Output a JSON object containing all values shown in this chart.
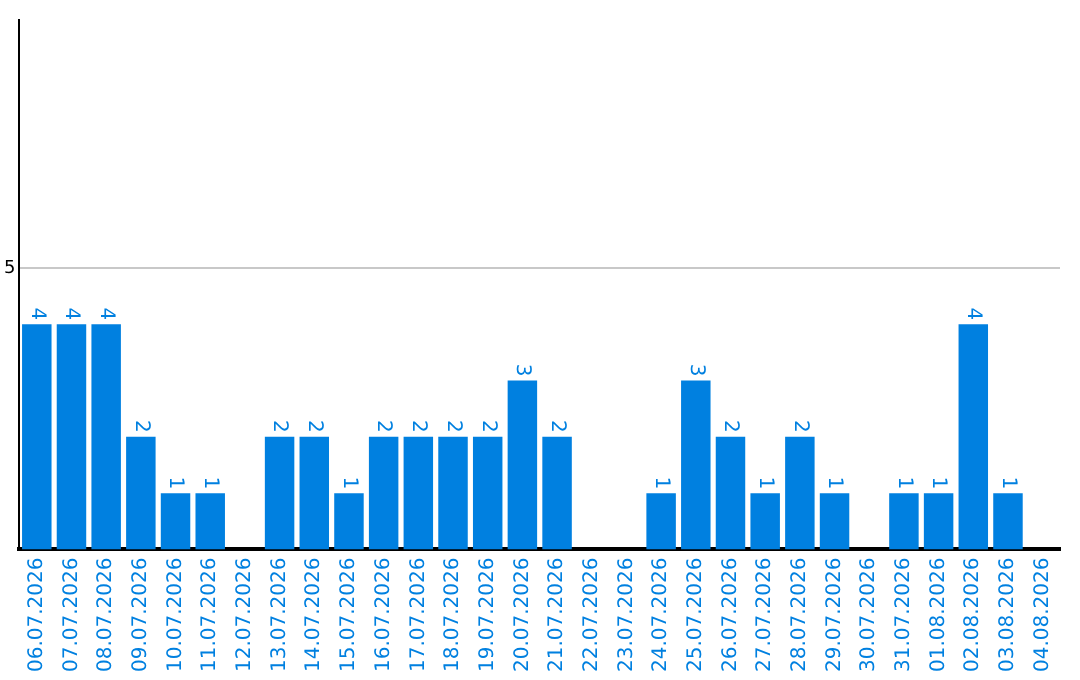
{
  "chart_data": {
    "type": "bar",
    "categories": [
      "06.07.2026",
      "07.07.2026",
      "08.07.2026",
      "09.07.2026",
      "10.07.2026",
      "11.07.2026",
      "12.07.2026",
      "13.07.2026",
      "14.07.2026",
      "15.07.2026",
      "16.07.2026",
      "17.07.2026",
      "18.07.2026",
      "19.07.2026",
      "20.07.2026",
      "21.07.2026",
      "22.07.2026",
      "23.07.2026",
      "24.07.2026",
      "25.07.2026",
      "26.07.2026",
      "27.07.2026",
      "28.07.2026",
      "29.07.2026",
      "30.07.2026",
      "31.07.2026",
      "01.08.2026",
      "02.08.2026",
      "03.08.2026",
      "04.08.2026"
    ],
    "values": [
      4,
      4,
      4,
      2,
      1,
      1,
      null,
      2,
      2,
      1,
      2,
      2,
      2,
      2,
      3,
      2,
      null,
      null,
      1,
      3,
      2,
      1,
      2,
      1,
      null,
      1,
      1,
      4,
      1,
      null
    ],
    "color": "#0080e0",
    "ylim": [
      0,
      9.4
    ],
    "yticks": [
      5
    ],
    "grid": "y",
    "data_labels": true,
    "legend": false
  }
}
